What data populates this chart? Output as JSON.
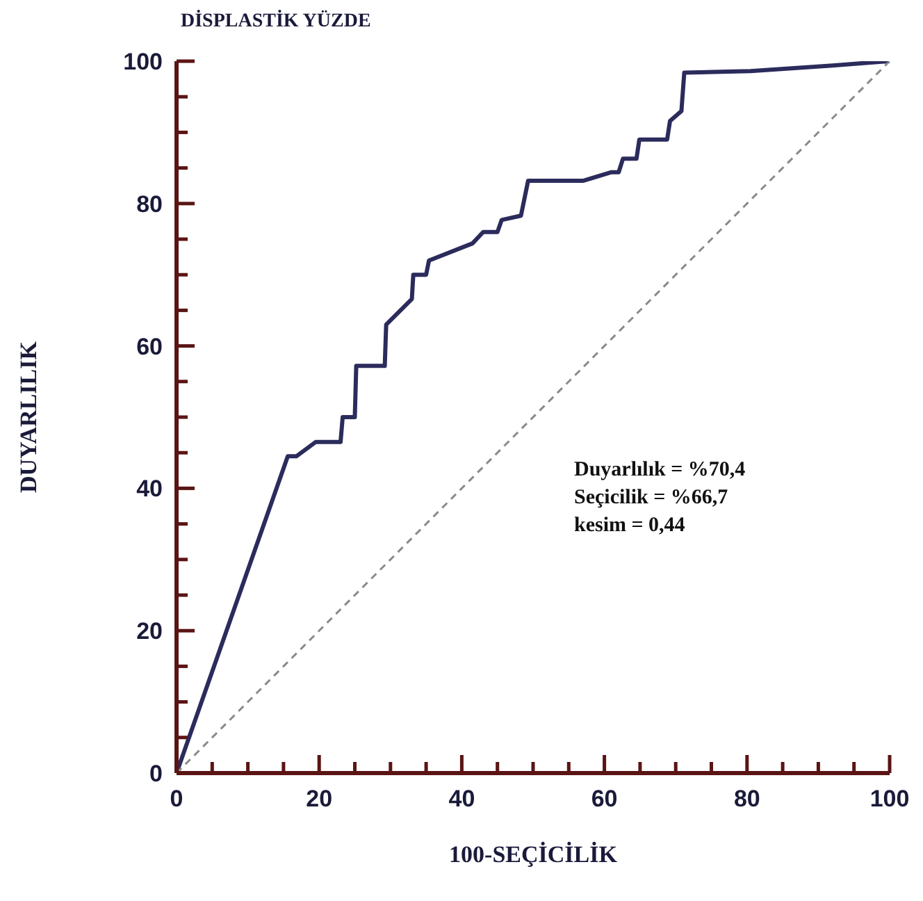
{
  "chart_data": {
    "type": "line",
    "title": "DİSPLASTİK YÜZDE",
    "xlabel": "100-SEÇİCİLİK",
    "ylabel": "DUYARLILIK",
    "series": [
      {
        "color": "#2b2b5c",
        "line_style": "solid",
        "x": [
          0,
          0,
          15.6,
          16.8,
          19.5,
          23,
          23.3,
          25,
          25.2,
          29.2,
          29.4,
          33,
          33.2,
          35,
          35.4,
          41.5,
          43,
          45,
          45.6,
          48.3,
          49.3,
          57,
          61,
          62,
          62.6,
          64.5,
          64.9,
          68.8,
          69.2,
          70.8,
          71.2,
          80.5,
          92,
          100
        ],
        "values": [
          0,
          0,
          44.5,
          44.5,
          46.5,
          46.5,
          50,
          50,
          57.2,
          57.2,
          63,
          66.6,
          70,
          70,
          72,
          74.4,
          76,
          76,
          77.7,
          78.3,
          83.2,
          83.2,
          84.4,
          84.4,
          86.3,
          86.3,
          89,
          89,
          91.6,
          93,
          98.4,
          98.6,
          99.4,
          100
        ]
      },
      {
        "color": "#8a8a8a",
        "line_style": "dashed",
        "x": [
          0,
          100
        ],
        "values": [
          0,
          100
        ]
      }
    ],
    "xlim": [
      0,
      100
    ],
    "ylim": [
      0,
      100
    ],
    "xticks": [
      0,
      {
        "value": 5,
        "label": null
      },
      {
        "value": 10,
        "label": null
      },
      {
        "value": 15,
        "label": null
      },
      20,
      {
        "value": 25,
        "label": null
      },
      {
        "value": 30,
        "label": null
      },
      {
        "value": 35,
        "label": null
      },
      40,
      {
        "value": 45,
        "label": null
      },
      {
        "value": 50,
        "label": null
      },
      {
        "value": 55,
        "label": null
      },
      60,
      {
        "value": 65,
        "label": null
      },
      {
        "value": 70,
        "label": null
      },
      {
        "value": 75,
        "label": null
      },
      80,
      {
        "value": 85,
        "label": null
      },
      {
        "value": 90,
        "label": null
      },
      {
        "value": 95,
        "label": null
      },
      100
    ],
    "yticks": [
      0,
      {
        "value": 5,
        "label": null
      },
      {
        "value": 10,
        "label": null
      },
      {
        "value": 15,
        "label": null
      },
      20,
      {
        "value": 25,
        "label": null
      },
      {
        "value": 30,
        "label": null
      },
      {
        "value": 35,
        "label": null
      },
      40,
      {
        "value": 45,
        "label": null
      },
      {
        "value": 50,
        "label": null
      },
      {
        "value": 55,
        "label": null
      },
      60,
      {
        "value": 65,
        "label": null
      },
      {
        "value": 70,
        "label": null
      },
      {
        "value": 75,
        "label": null
      },
      80,
      {
        "value": 85,
        "label": null
      },
      {
        "value": 90,
        "label": null
      },
      {
        "value": 95,
        "label": null
      },
      100
    ],
    "annotations": [
      "Duyarlılık = %70,4",
      "Seçicilik = %66,7",
      "kesim = 0,44"
    ],
    "marker": "none"
  }
}
